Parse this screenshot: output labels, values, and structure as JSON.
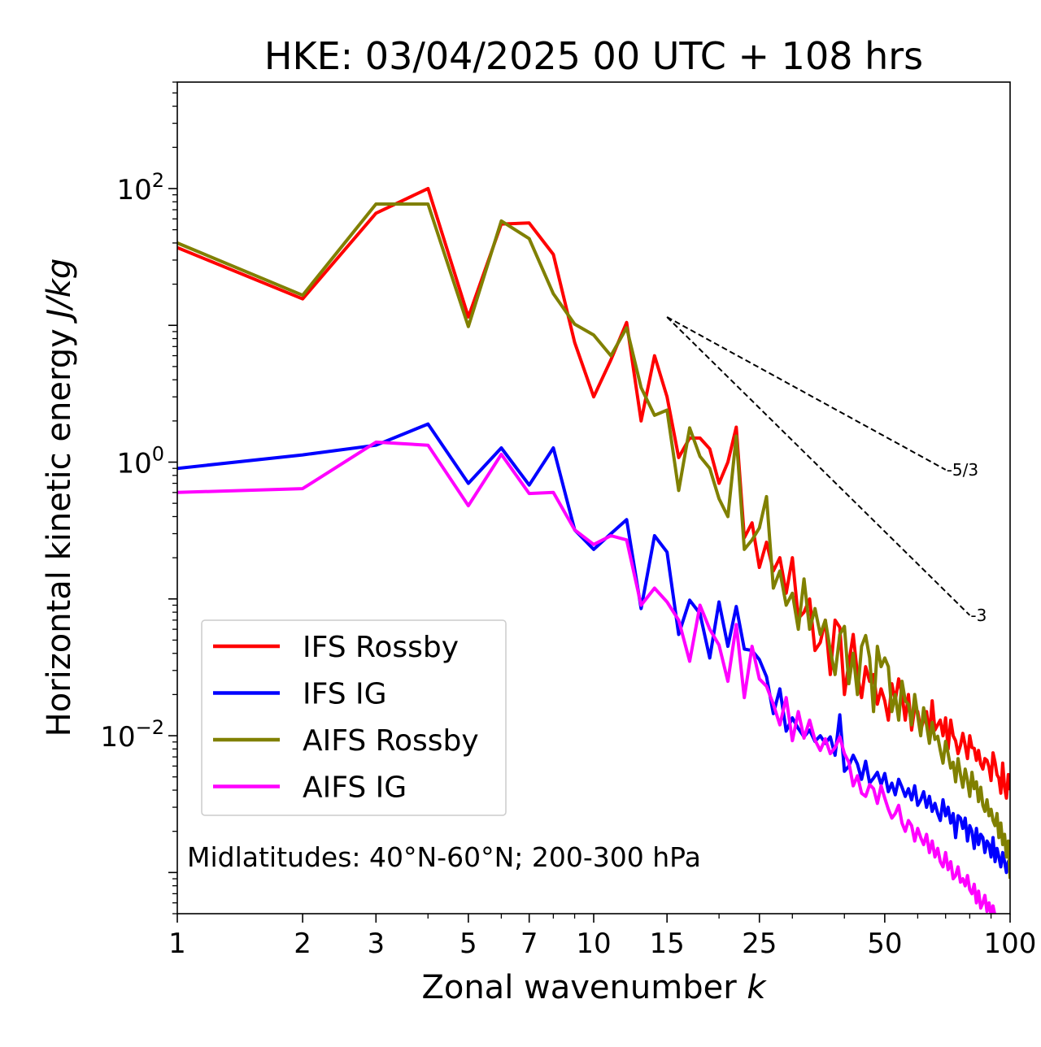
{
  "chart_data": {
    "type": "line",
    "title": "HKE: 03/04/2025 00 UTC + 108 hrs",
    "xlabel": "Zonal wavenumber k",
    "ylabel": "Horizontal kinetic energy J/kg",
    "xscale": "log",
    "yscale": "log",
    "xlim": [
      1,
      100
    ],
    "ylim": [
      0.0005,
      600
    ],
    "grid": false,
    "legend_position": "lower-left",
    "annotation": "Midlatitudes: 40°N-60°N; 200-300 hPa",
    "x_ticks": [
      {
        "value": 1,
        "label": "1"
      },
      {
        "value": 2,
        "label": "2"
      },
      {
        "value": 3,
        "label": "3"
      },
      {
        "value": 5,
        "label": "5"
      },
      {
        "value": 7,
        "label": "7"
      },
      {
        "value": 10,
        "label": "10"
      },
      {
        "value": 15,
        "label": "15"
      },
      {
        "value": 25,
        "label": "25"
      },
      {
        "value": 50,
        "label": "50"
      },
      {
        "value": 100,
        "label": "100"
      }
    ],
    "y_ticks": [
      {
        "value": 0.01,
        "base": "10",
        "exp": "−2"
      },
      {
        "value": 1,
        "base": "10",
        "exp": "0"
      },
      {
        "value": 100,
        "base": "10",
        "exp": "2"
      }
    ],
    "reference_slopes": [
      {
        "label": "-5/3",
        "x": [
          15,
          70
        ],
        "y": [
          11.5,
          0.88
        ]
      },
      {
        "label": "-3",
        "x": [
          15,
          80
        ],
        "y": [
          11.5,
          0.076
        ]
      }
    ],
    "series": [
      {
        "name": "IFS Rossby",
        "color": "#ff0000",
        "values": [
          37,
          15.6,
          66,
          100,
          11.5,
          55,
          56,
          33,
          7.5,
          3.0,
          5.6,
          10.5,
          2.0,
          6.0,
          3.0,
          1.08,
          1.5,
          1.5,
          1.25,
          0.7,
          1.0,
          1.8,
          0.28,
          0.36,
          0.17,
          0.26,
          0.16,
          0.2,
          0.11,
          0.2,
          0.072,
          0.08,
          0.1,
          0.042,
          0.048,
          0.07,
          0.028,
          0.07,
          0.062,
          0.02,
          0.034,
          0.055,
          0.028,
          0.019,
          0.032,
          0.025,
          0.028,
          0.017,
          0.022,
          0.018,
          0.013,
          0.024,
          0.018,
          0.026,
          0.02,
          0.013,
          0.02,
          0.011,
          0.016,
          0.015,
          0.011,
          0.013,
          0.015,
          0.01,
          0.018,
          0.011,
          0.012,
          0.013,
          0.01,
          0.0135,
          0.008,
          0.013,
          0.01,
          0.0092,
          0.0074,
          0.0085,
          0.0104,
          0.0085,
          0.0068,
          0.01,
          0.0082,
          0.0081,
          0.0066,
          0.0078,
          0.0062,
          0.0057,
          0.0068,
          0.0066,
          0.0059,
          0.0047,
          0.0075,
          0.0064,
          0.0052,
          0.0049,
          0.0038,
          0.0063,
          0.0042,
          0.0035,
          0.0052,
          0.004
        ]
      },
      {
        "name": "IFS IG",
        "color": "#0000ff",
        "values": [
          0.9,
          1.13,
          1.33,
          1.9,
          0.7,
          1.27,
          0.68,
          1.27,
          0.32,
          0.23,
          0.3,
          0.38,
          0.085,
          0.29,
          0.22,
          0.055,
          0.098,
          0.078,
          0.037,
          0.095,
          0.045,
          0.088,
          0.043,
          0.042,
          0.036,
          0.027,
          0.0145,
          0.022,
          0.0108,
          0.0135,
          0.0113,
          0.0098,
          0.011,
          0.0091,
          0.01,
          0.0088,
          0.0098,
          0.0072,
          0.0142,
          0.0055,
          0.006,
          0.0072,
          0.0062,
          0.0048,
          0.0065,
          0.0045,
          0.0049,
          0.0054,
          0.0044,
          0.0053,
          0.0039,
          0.0045,
          0.0037,
          0.0048,
          0.0042,
          0.0036,
          0.0041,
          0.0034,
          0.0043,
          0.0031,
          0.0034,
          0.0039,
          0.003,
          0.0036,
          0.0028,
          0.0032,
          0.0027,
          0.0024,
          0.0034,
          0.0026,
          0.003,
          0.0023,
          0.0027,
          0.0018,
          0.0026,
          0.0025,
          0.0021,
          0.0025,
          0.0017,
          0.0022,
          0.002,
          0.0015,
          0.0021,
          0.0016,
          0.0019,
          0.0018,
          0.0014,
          0.0017,
          0.0016,
          0.0013,
          0.0018,
          0.0012,
          0.0015,
          0.0013,
          0.0011,
          0.0014,
          0.0012,
          0.001,
          0.0012,
          0.00105
        ]
      },
      {
        "name": "AIFS Rossby",
        "color": "#808000",
        "values": [
          40,
          16.6,
          77,
          77,
          9.8,
          58,
          43,
          17,
          10.2,
          8.5,
          6.0,
          9.6,
          3.5,
          2.2,
          2.4,
          0.62,
          1.78,
          1.1,
          0.9,
          0.54,
          0.4,
          1.55,
          0.23,
          0.27,
          0.33,
          0.56,
          0.12,
          0.16,
          0.09,
          0.11,
          0.06,
          0.14,
          0.06,
          0.085,
          0.055,
          0.07,
          0.042,
          0.028,
          0.055,
          0.063,
          0.024,
          0.04,
          0.02,
          0.045,
          0.054,
          0.037,
          0.015,
          0.045,
          0.032,
          0.037,
          0.032,
          0.015,
          0.02,
          0.013,
          0.025,
          0.018,
          0.017,
          0.012,
          0.02,
          0.014,
          0.01,
          0.016,
          0.012,
          0.0088,
          0.0125,
          0.0094,
          0.0099,
          0.0078,
          0.0063,
          0.0091,
          0.0074,
          0.0058,
          0.0064,
          0.0046,
          0.0068,
          0.0052,
          0.0042,
          0.0057,
          0.0047,
          0.0036,
          0.0054,
          0.0041,
          0.0046,
          0.0033,
          0.0042,
          0.0031,
          0.0028,
          0.0034,
          0.0026,
          0.0029,
          0.0024,
          0.0022,
          0.0027,
          0.0018,
          0.0023,
          0.0016,
          0.0019,
          0.0013,
          0.0017,
          0.0009
        ]
      },
      {
        "name": "AIFS IG",
        "color": "#ff00ff",
        "values": [
          0.6,
          0.64,
          1.4,
          1.33,
          0.48,
          1.14,
          0.59,
          0.6,
          0.32,
          0.25,
          0.29,
          0.27,
          0.09,
          0.12,
          0.095,
          0.07,
          0.035,
          0.09,
          0.06,
          0.046,
          0.025,
          0.065,
          0.019,
          0.045,
          0.026,
          0.023,
          0.017,
          0.012,
          0.019,
          0.0092,
          0.015,
          0.0096,
          0.013,
          0.0093,
          0.0078,
          0.0095,
          0.0074,
          0.0082,
          0.0098,
          0.0074,
          0.0064,
          0.0043,
          0.0051,
          0.0038,
          0.0036,
          0.0044,
          0.0041,
          0.0032,
          0.0043,
          0.0035,
          0.0029,
          0.0025,
          0.0027,
          0.0031,
          0.0023,
          0.002,
          0.0024,
          0.0022,
          0.0017,
          0.0021,
          0.0018,
          0.0016,
          0.0019,
          0.0014,
          0.0017,
          0.0013,
          0.0015,
          0.0012,
          0.0011,
          0.0014,
          0.00105,
          0.0012,
          0.0009,
          0.00095,
          0.0011,
          0.00085,
          0.0009,
          0.0008,
          0.00095,
          0.00075,
          0.0007,
          0.00082,
          0.0006,
          0.00073,
          0.00055,
          0.0006,
          0.00068,
          0.00052,
          0.0006,
          0.00049,
          0.00057,
          0.00048,
          0.00044,
          0.00038,
          0.00045,
          0.00035,
          0.00042,
          0.0003,
          0.00036,
          0.00028
        ]
      }
    ]
  }
}
